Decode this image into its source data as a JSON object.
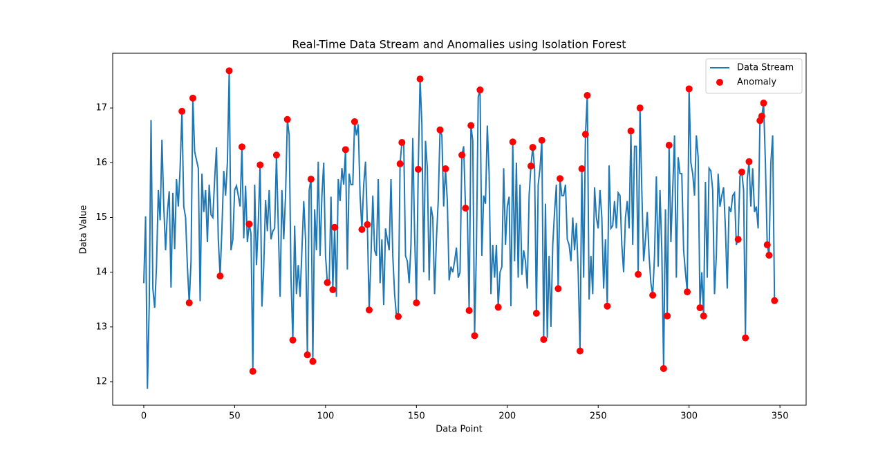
{
  "chart_data": {
    "type": "line",
    "title": "Real-Time Data Stream and Anomalies using Isolation Forest",
    "xlabel": "Data Point",
    "ylabel": "Data Value",
    "xlim": [
      -17.1,
      364.4
    ],
    "ylim": [
      11.57,
      18.0
    ],
    "xticks": [
      0,
      50,
      100,
      150,
      200,
      250,
      300,
      350
    ],
    "yticks": [
      12,
      13,
      14,
      15,
      16,
      17
    ],
    "legend": "upper right",
    "series": [
      {
        "name": "Data Stream",
        "type": "line",
        "color": "#1f77b4",
        "x": [
          0,
          1,
          2,
          3,
          4,
          5,
          6,
          7,
          8,
          9,
          10,
          11,
          12,
          13,
          14,
          15,
          16,
          17,
          18,
          19,
          20,
          21,
          22,
          23,
          24,
          25,
          26,
          27,
          28,
          29,
          30,
          31,
          32,
          33,
          34,
          35,
          36,
          37,
          38,
          39,
          40,
          41,
          42,
          43,
          44,
          45,
          46,
          47,
          48,
          49,
          50,
          51,
          52,
          53,
          54,
          55,
          56,
          57,
          58,
          59,
          60,
          61,
          62,
          63,
          64,
          65,
          66,
          67,
          68,
          69,
          70,
          71,
          72,
          73,
          74,
          75,
          76,
          77,
          78,
          79,
          80,
          81,
          82,
          83,
          84,
          85,
          86,
          87,
          88,
          89,
          90,
          91,
          92,
          93,
          94,
          95,
          96,
          97,
          98,
          99,
          100,
          101,
          102,
          103,
          104,
          105,
          106,
          107,
          108,
          109,
          110,
          111,
          112,
          113,
          114,
          115,
          116,
          117,
          118,
          119,
          120,
          121,
          122,
          123,
          124,
          125,
          126,
          127,
          128,
          129,
          130,
          131,
          132,
          133,
          134,
          135,
          136,
          137,
          138,
          139,
          140,
          141,
          142,
          143,
          144,
          145,
          146,
          147,
          148,
          149,
          150,
          151,
          152,
          153,
          154,
          155,
          156,
          157,
          158,
          159,
          160,
          161,
          162,
          163,
          164,
          165,
          166,
          167,
          168,
          169,
          170,
          171,
          172,
          173,
          174,
          175,
          176,
          177,
          178,
          179,
          180,
          181,
          182,
          183,
          184,
          185,
          186,
          187,
          188,
          189,
          190,
          191,
          192,
          193,
          194,
          195,
          196,
          197,
          198,
          199,
          200,
          201,
          202,
          203,
          204,
          205,
          206,
          207,
          208,
          209,
          210,
          211,
          212,
          213,
          214,
          215,
          216,
          217,
          218,
          219,
          220,
          221,
          222,
          223,
          224,
          225,
          226,
          227,
          228,
          229,
          230,
          231,
          232,
          233,
          234,
          235,
          236,
          237,
          238,
          239,
          240,
          241,
          242,
          243,
          244,
          245,
          246,
          247,
          248,
          249,
          250,
          251,
          252,
          253,
          254,
          255,
          256,
          257,
          258,
          259,
          260,
          261,
          262,
          263,
          264,
          265,
          266,
          267,
          268,
          269,
          270,
          271,
          272,
          273,
          274,
          275,
          276,
          277,
          278,
          279,
          280,
          281,
          282,
          283,
          284,
          285,
          286,
          287,
          288,
          289,
          290,
          291,
          292,
          293,
          294,
          295,
          296,
          297,
          298,
          299,
          300,
          301,
          302,
          303,
          304,
          305,
          306,
          307,
          308,
          309,
          310,
          311,
          312,
          313,
          314,
          315,
          316,
          317,
          318,
          319,
          320,
          321,
          322,
          323,
          324,
          325,
          326,
          327,
          328,
          329,
          330,
          331,
          332,
          333,
          334,
          335,
          336,
          337,
          338,
          339,
          340,
          341,
          342,
          343,
          344,
          345,
          346,
          347
        ],
        "values": [
          13.8,
          15.02,
          11.87,
          13.4,
          16.78,
          13.7,
          13.35,
          14.1,
          15.5,
          14.95,
          16.42,
          15.2,
          14.4,
          15.1,
          15.48,
          13.72,
          15.45,
          14.42,
          15.7,
          15.2,
          15.9,
          16.94,
          15.2,
          15.0,
          14.1,
          13.44,
          14.2,
          17.18,
          16.2,
          16.05,
          15.9,
          13.47,
          15.8,
          15.1,
          15.5,
          14.55,
          15.6,
          15.05,
          15.0,
          15.7,
          16.28,
          14.6,
          13.93,
          14.8,
          15.85,
          15.4,
          16.0,
          17.68,
          14.4,
          14.6,
          15.5,
          15.58,
          15.4,
          15.2,
          16.29,
          14.62,
          15.58,
          14.55,
          14.88,
          14.7,
          12.19,
          15.6,
          14.13,
          14.9,
          15.96,
          13.37,
          14.1,
          15.32,
          14.75,
          15.5,
          14.6,
          14.75,
          14.8,
          16.14,
          14.85,
          13.55,
          15.5,
          14.6,
          15.4,
          16.79,
          16.5,
          13.9,
          12.76,
          14.85,
          13.6,
          14.13,
          13.55,
          14.4,
          15.3,
          14.6,
          12.49,
          15.5,
          15.7,
          12.37,
          15.15,
          14.4,
          16.02,
          14.3,
          15.4,
          16.0,
          14.3,
          13.81,
          13.8,
          15.38,
          13.68,
          14.82,
          13.55,
          15.7,
          15.3,
          15.9,
          15.6,
          16.24,
          14.05,
          15.8,
          15.6,
          15.6,
          16.75,
          16.5,
          16.7,
          15.4,
          14.78,
          15.6,
          16.02,
          14.87,
          13.31,
          14.3,
          15.4,
          14.4,
          14.3,
          15.7,
          13.8,
          14.6,
          13.4,
          14.8,
          14.6,
          14.4,
          15.7,
          14.3,
          13.6,
          13.2,
          13.19,
          15.98,
          16.37,
          16.4,
          14.3,
          14.2,
          13.8,
          14.5,
          16.45,
          14.7,
          13.44,
          15.88,
          17.53,
          16.7,
          14.0,
          16.4,
          15.9,
          13.85,
          15.2,
          15.0,
          13.6,
          14.6,
          15.3,
          16.6,
          16.5,
          15.2,
          15.89,
          15.3,
          13.85,
          14.1,
          14.0,
          14.2,
          14.45,
          13.9,
          14.0,
          16.14,
          16.3,
          15.17,
          15.1,
          13.3,
          16.68,
          16.4,
          12.84,
          14.4,
          17.2,
          17.33,
          14.3,
          15.4,
          15.25,
          16.68,
          15.8,
          13.6,
          14.5,
          13.9,
          14.5,
          13.36,
          14.0,
          14.1,
          15.9,
          14.5,
          15.2,
          15.38,
          13.38,
          16.38,
          14.2,
          16.0,
          13.9,
          15.6,
          13.95,
          14.4,
          14.2,
          13.7,
          15.4,
          15.94,
          16.28,
          15.9,
          13.25,
          15.6,
          15.9,
          16.41,
          12.77,
          15.25,
          12.8,
          14.3,
          13.0,
          14.5,
          15.1,
          15.6,
          13.7,
          15.71,
          15.4,
          15.4,
          15.6,
          14.6,
          14.5,
          14.2,
          15.0,
          14.4,
          14.9,
          14.0,
          12.56,
          15.89,
          13.9,
          16.52,
          17.23,
          13.5,
          14.3,
          13.6,
          15.55,
          15.0,
          14.8,
          15.5,
          15.0,
          13.7,
          14.6,
          13.38,
          15.95,
          14.8,
          14.85,
          15.3,
          14.8,
          15.45,
          15.4,
          14.5,
          14.0,
          15.0,
          15.3,
          14.8,
          16.58,
          14.5,
          16.3,
          16.3,
          13.96,
          17.0,
          15.5,
          14.2,
          14.6,
          15.1,
          14.3,
          13.8,
          13.58,
          14.3,
          15.75,
          14.1,
          15.5,
          14.4,
          12.24,
          15.15,
          13.2,
          16.32,
          14.55,
          15.5,
          16.5,
          13.9,
          16.1,
          15.8,
          15.8,
          14.4,
          14.0,
          13.64,
          17.35,
          16.0,
          15.8,
          15.4,
          16.5,
          16.1,
          13.35,
          14.0,
          13.2,
          15.65,
          13.9,
          15.9,
          15.85,
          15.5,
          13.6,
          14.3,
          15.8,
          15.2,
          15.4,
          15.55,
          14.8,
          13.7,
          15.2,
          15.1,
          15.4,
          15.45,
          14.5,
          14.6,
          15.75,
          15.83,
          15.5,
          12.8,
          15.7,
          16.02,
          15.2,
          15.9,
          15.1,
          15.2,
          14.8,
          16.77,
          16.85,
          17.09,
          16.0,
          14.5,
          14.31,
          16.0,
          16.5,
          13.48
        ]
      },
      {
        "name": "Anomaly",
        "type": "scatter",
        "color": "#ff0000",
        "x": [
          21,
          25,
          27,
          42,
          47,
          54,
          58,
          60,
          64,
          73,
          79,
          82,
          90,
          92,
          93,
          101,
          104,
          105,
          111,
          116,
          120,
          123,
          124,
          140,
          141,
          142,
          150,
          151,
          152,
          163,
          166,
          175,
          177,
          179,
          180,
          182,
          185,
          195,
          203,
          213,
          214,
          216,
          219,
          220,
          228,
          229,
          240,
          241,
          243,
          244,
          255,
          268,
          272,
          273,
          280,
          286,
          288,
          289,
          299,
          300,
          306,
          308,
          327,
          329,
          331,
          333,
          339,
          340,
          341,
          343,
          344,
          347
        ],
        "values": [
          16.94,
          13.44,
          17.18,
          13.93,
          17.68,
          16.29,
          14.88,
          12.19,
          15.96,
          16.14,
          16.79,
          12.76,
          12.49,
          15.7,
          12.37,
          13.81,
          13.68,
          14.82,
          16.24,
          16.75,
          14.78,
          14.87,
          13.31,
          13.19,
          15.98,
          16.37,
          13.44,
          15.88,
          17.53,
          16.6,
          15.89,
          16.14,
          15.17,
          13.3,
          16.68,
          12.84,
          17.33,
          13.36,
          16.38,
          15.94,
          16.28,
          13.25,
          16.41,
          12.77,
          13.7,
          15.71,
          12.56,
          15.89,
          16.52,
          17.23,
          13.38,
          16.58,
          13.96,
          17.0,
          13.58,
          12.24,
          13.2,
          16.32,
          13.64,
          17.35,
          13.35,
          13.2,
          14.6,
          15.83,
          12.8,
          16.02,
          16.77,
          16.85,
          17.09,
          14.5,
          14.31,
          13.48
        ]
      }
    ]
  }
}
